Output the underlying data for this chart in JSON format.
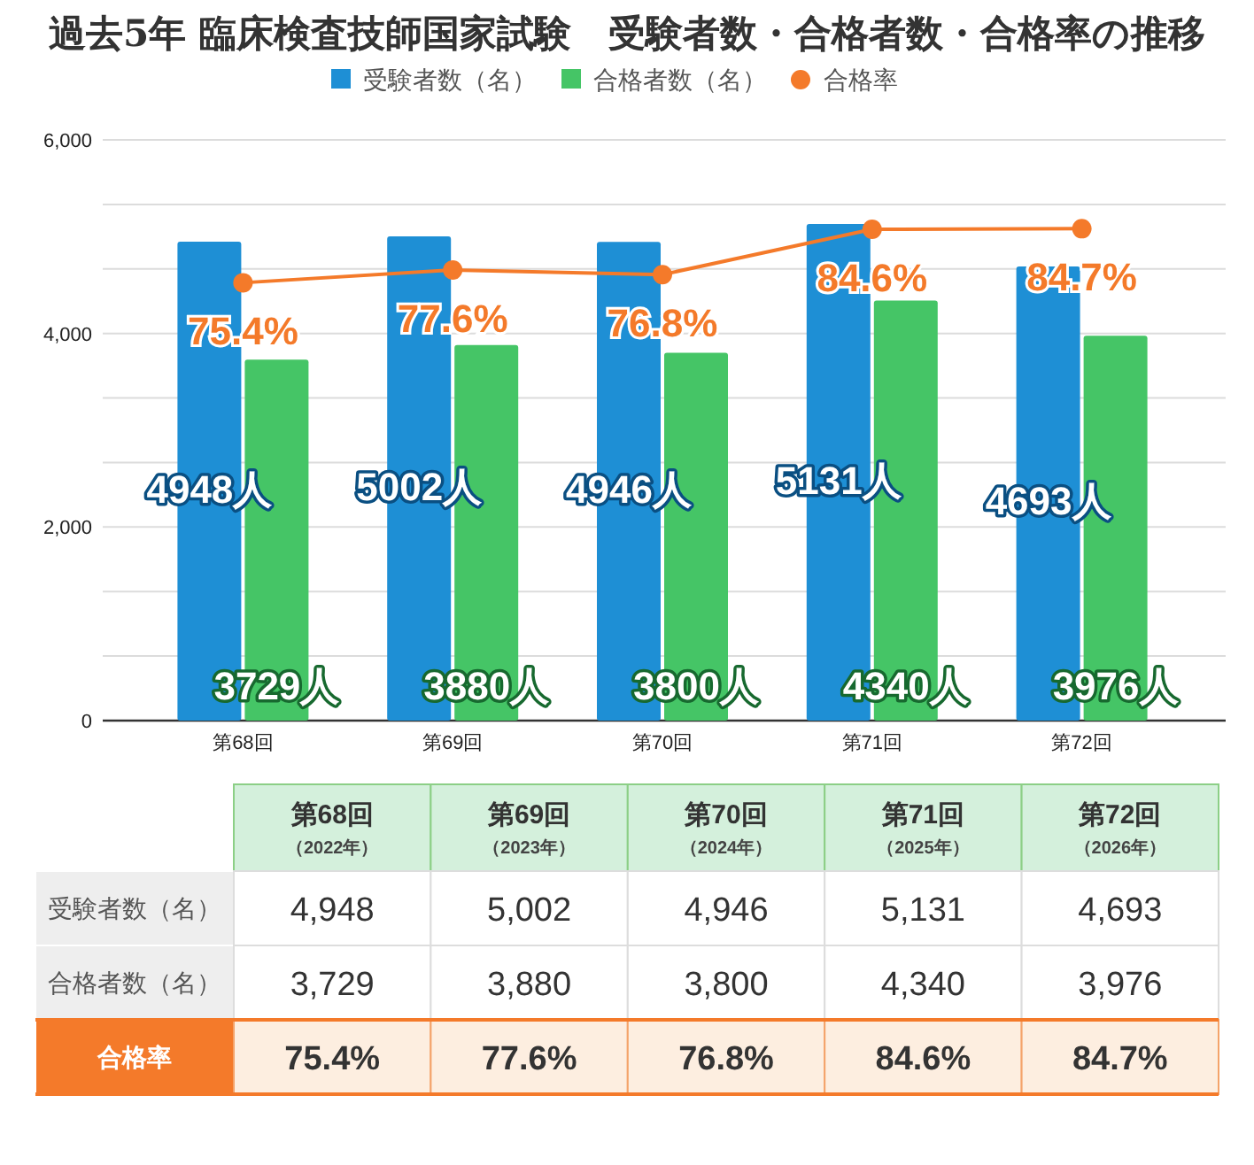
{
  "chart_data": {
    "type": "bar",
    "title": "過去5年 臨床検査技師国家試験　受験者数・合格者数・合格率の推移",
    "categories": [
      "第68回",
      "第69回",
      "第70回",
      "第71回",
      "第72回"
    ],
    "series": [
      {
        "name": "受験者数（名）",
        "color": "#1e8fd5",
        "values": [
          4948,
          5002,
          4946,
          5131,
          4693
        ],
        "value_labels": [
          "4948人",
          "5002人",
          "4946人",
          "5131人",
          "4693人"
        ]
      },
      {
        "name": "合格者数（名）",
        "color": "#45c566",
        "values": [
          3729,
          3880,
          3800,
          4340,
          3976
        ],
        "value_labels": [
          "3729人",
          "3880人",
          "3800人",
          "4340人",
          "3976人"
        ]
      },
      {
        "name": "合格率",
        "type": "line",
        "axis": "y2",
        "color": "#f47a2a",
        "values": [
          75.4,
          77.6,
          76.8,
          84.6,
          84.7
        ],
        "value_labels": [
          "75.4%",
          "77.6%",
          "76.8%",
          "84.6%",
          "84.7%"
        ]
      }
    ],
    "ylim": [
      0,
      6000
    ],
    "yticks": [
      0,
      {
        "value": 666.67,
        "label": null
      },
      {
        "value": 1333.33,
        "label": null
      },
      {
        "value": 2000,
        "label": "2,000"
      },
      {
        "value": 2666.67,
        "label": null
      },
      {
        "value": 3333.33,
        "label": null
      },
      {
        "value": 4000,
        "label": "4,000"
      },
      {
        "value": 4666.67,
        "label": null
      },
      {
        "value": 5333.33,
        "label": null
      },
      {
        "value": 6000,
        "label": "6,000"
      }
    ],
    "y2lim": [
      0,
      100
    ],
    "grid": "y",
    "legend": "top",
    "marker": "circle",
    "annotations": [
      "（2022年）",
      "（2023年）",
      "（2024年）",
      "（2025年）",
      "（2026年）",
      "4,948",
      "5,002",
      "4,946",
      "5,131",
      "4,693",
      "3,729",
      "3,880",
      "3,800",
      "4,340",
      "3,976"
    ]
  }
}
